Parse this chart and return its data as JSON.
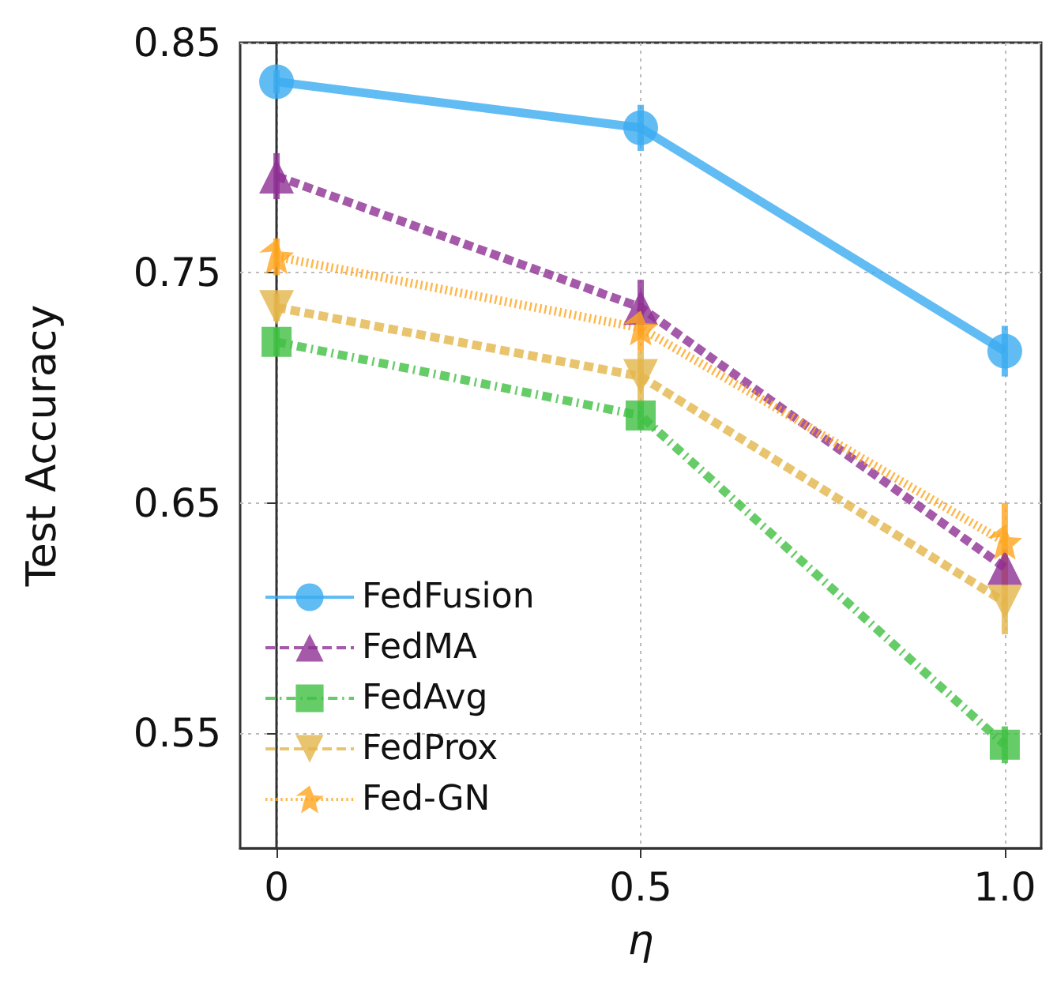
{
  "chart_data": {
    "type": "line",
    "xlabel": "η",
    "ylabel": "Test Accuracy",
    "x": [
      0,
      0.5,
      1.0
    ],
    "xlim": [
      -0.05,
      1.05
    ],
    "xticks": [
      0,
      0.5,
      {
        "value": 1.0,
        "label": "1.0"
      }
    ],
    "ylim": [
      0.5,
      0.85
    ],
    "yticks": [
      0.55,
      0.65,
      0.75,
      0.85
    ],
    "grid": true,
    "legend": "bottom left",
    "series": [
      {
        "name": "FedFusion",
        "color": "#3aabf0",
        "marker": "circle",
        "line_style": "solid",
        "values": [
          0.833,
          0.813,
          0.716
        ],
        "errors": [
          0.005,
          0.01,
          0.011
        ]
      },
      {
        "name": "FedMA",
        "color": "#8e3094",
        "marker": "triangle",
        "line_style": "dashed",
        "values": [
          0.792,
          0.735,
          0.622
        ],
        "errors": [
          0.01,
          0.012,
          0.008
        ]
      },
      {
        "name": "FedAvg",
        "color": "#40bf42",
        "marker": "square",
        "line_style": "dashdot",
        "values": [
          0.72,
          0.688,
          0.545
        ],
        "errors": [
          0.006,
          0.006,
          0.008
        ]
      },
      {
        "name": "FedProx",
        "color": "#e3b54a",
        "marker": "triangle_down",
        "line_style": "dashed",
        "values": [
          0.735,
          0.705,
          0.607
        ],
        "errors": [
          0.006,
          0.011,
          0.014
        ]
      },
      {
        "name": "Fed-GN",
        "color": "#ffa51f",
        "marker": "star",
        "line_style": "dotted",
        "values": [
          0.757,
          0.726,
          0.633
        ],
        "errors": [
          0.008,
          0.01,
          0.017
        ]
      }
    ]
  }
}
